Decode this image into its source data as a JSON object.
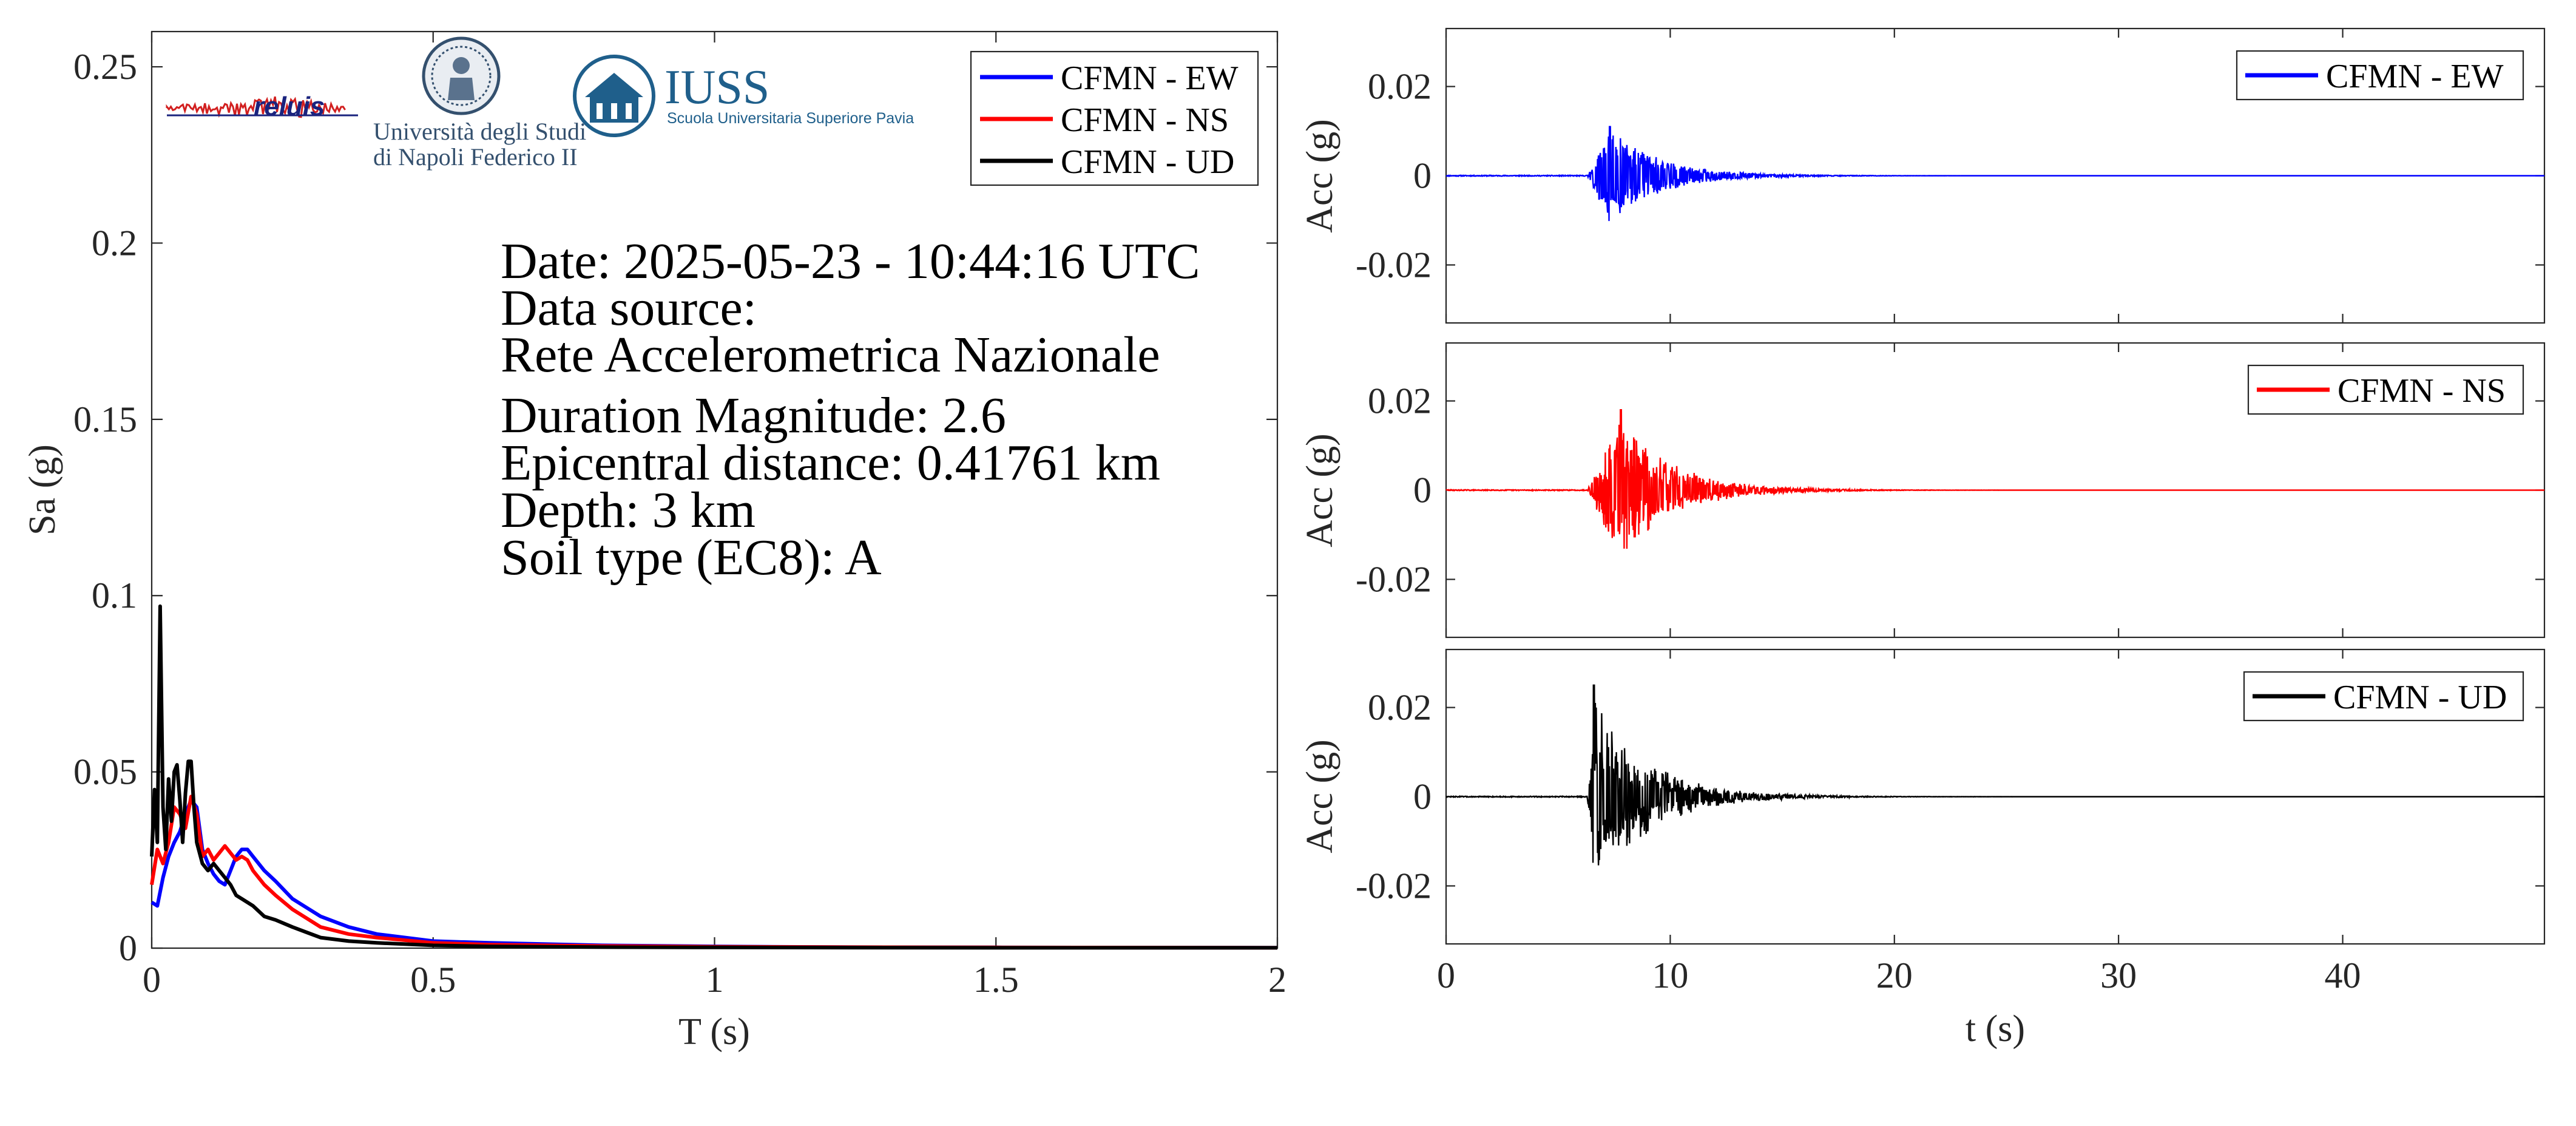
{
  "logos": {
    "reluis": "reluis",
    "unina_line1": "Università degli Studi",
    "unina_line2": "di Napoli Federico II",
    "iuss_title": "IUSS",
    "iuss_subtitle": "Scuola Universitaria Superiore Pavia"
  },
  "info": {
    "date": "Date: 2025-05-23 - 10:44:16 UTC",
    "source_label": "Data source:",
    "source_value": "Rete Accelerometrica Nazionale",
    "magnitude": "Duration Magnitude: 2.6",
    "distance": "Epicentral distance: 0.41761 km",
    "depth": "Depth: 3 km",
    "soil": "Soil type (EC8): A"
  },
  "colors": {
    "ew": "#0000ff",
    "ns": "#ff0000",
    "ud": "#000000",
    "axes": "#262626"
  },
  "chart_data": [
    {
      "type": "line",
      "xlabel": "T (s)",
      "ylabel": "Sa (g)",
      "xlim": [
        0,
        2
      ],
      "ylim": [
        0,
        0.26
      ],
      "xticks": [
        0,
        0.5,
        1,
        1.5,
        2
      ],
      "xtick_labels": [
        "0",
        "0.5",
        "1",
        "1.5",
        "2"
      ],
      "yticks": [
        0,
        0.05,
        0.1,
        0.15,
        0.2,
        0.25
      ],
      "ytick_labels": [
        "0",
        "0.05",
        "0.1",
        "0.15",
        "0.2",
        "0.25"
      ],
      "legend_position": "top-right",
      "series": [
        {
          "name": "CFMN - EW",
          "color": "#0000ff",
          "x": [
            0,
            0.01,
            0.02,
            0.03,
            0.04,
            0.05,
            0.06,
            0.07,
            0.08,
            0.09,
            0.1,
            0.11,
            0.12,
            0.13,
            0.14,
            0.15,
            0.16,
            0.17,
            0.18,
            0.2,
            0.22,
            0.25,
            0.3,
            0.35,
            0.4,
            0.5,
            0.6,
            0.8,
            1.0,
            1.2,
            1.5,
            2.0
          ],
          "y": [
            0.013,
            0.012,
            0.02,
            0.026,
            0.03,
            0.033,
            0.038,
            0.042,
            0.04,
            0.028,
            0.024,
            0.021,
            0.019,
            0.018,
            0.022,
            0.026,
            0.028,
            0.028,
            0.026,
            0.022,
            0.019,
            0.014,
            0.009,
            0.006,
            0.004,
            0.002,
            0.0015,
            0.0008,
            0.0005,
            0.0003,
            0.0002,
            0.0001
          ]
        },
        {
          "name": "CFMN - NS",
          "color": "#ff0000",
          "x": [
            0,
            0.01,
            0.02,
            0.03,
            0.04,
            0.05,
            0.06,
            0.07,
            0.08,
            0.09,
            0.1,
            0.11,
            0.12,
            0.13,
            0.14,
            0.15,
            0.16,
            0.17,
            0.18,
            0.2,
            0.22,
            0.25,
            0.3,
            0.35,
            0.4,
            0.5,
            0.6,
            0.8,
            1.0,
            1.2,
            1.5,
            2.0
          ],
          "y": [
            0.018,
            0.028,
            0.024,
            0.03,
            0.04,
            0.038,
            0.034,
            0.043,
            0.038,
            0.026,
            0.028,
            0.025,
            0.027,
            0.029,
            0.027,
            0.025,
            0.026,
            0.025,
            0.022,
            0.018,
            0.015,
            0.011,
            0.006,
            0.004,
            0.003,
            0.0015,
            0.001,
            0.0006,
            0.0004,
            0.0003,
            0.0002,
            0.0001
          ]
        },
        {
          "name": "CFMN - UD",
          "color": "#000000",
          "x": [
            0,
            0.005,
            0.01,
            0.015,
            0.02,
            0.025,
            0.03,
            0.035,
            0.04,
            0.045,
            0.05,
            0.055,
            0.06,
            0.065,
            0.07,
            0.075,
            0.08,
            0.09,
            0.1,
            0.11,
            0.12,
            0.13,
            0.14,
            0.15,
            0.16,
            0.18,
            0.2,
            0.22,
            0.25,
            0.3,
            0.35,
            0.4,
            0.5,
            0.6,
            0.8,
            1.0,
            1.5,
            2.0
          ],
          "y": [
            0.026,
            0.045,
            0.03,
            0.097,
            0.04,
            0.028,
            0.048,
            0.036,
            0.05,
            0.052,
            0.042,
            0.03,
            0.044,
            0.053,
            0.053,
            0.04,
            0.03,
            0.024,
            0.022,
            0.024,
            0.022,
            0.02,
            0.018,
            0.015,
            0.014,
            0.012,
            0.009,
            0.008,
            0.006,
            0.003,
            0.002,
            0.0015,
            0.0008,
            0.0005,
            0.0003,
            0.0002,
            0.0001,
            0.0001
          ]
        }
      ]
    },
    {
      "type": "line",
      "xlabel": "",
      "ylabel": "Acc (g)",
      "xlim": [
        0,
        49
      ],
      "ylim": [
        -0.033,
        0.033
      ],
      "xticks": [
        0,
        10,
        20,
        30,
        40
      ],
      "xtick_labels": [
        "0",
        "10",
        "20",
        "30",
        "40"
      ],
      "yticks": [
        -0.02,
        0,
        0.02
      ],
      "ytick_labels": [
        "-0.02",
        "0",
        "0.02"
      ],
      "legend_position": "top-right",
      "series": [
        {
          "name": "CFMN - EW",
          "color": "#0000ff",
          "signal": {
            "onset": 6.3,
            "peak_time": 7.3,
            "peak_amplitude": 0.011,
            "min_amplitude": -0.012,
            "decay_end": 16
          }
        }
      ]
    },
    {
      "type": "line",
      "xlabel": "",
      "ylabel": "Acc (g)",
      "xlim": [
        0,
        49
      ],
      "ylim": [
        -0.033,
        0.033
      ],
      "xticks": [
        0,
        10,
        20,
        30,
        40
      ],
      "xtick_labels": [
        "0",
        "10",
        "20",
        "30",
        "40"
      ],
      "yticks": [
        -0.02,
        0,
        0.02
      ],
      "ytick_labels": [
        "-0.02",
        "0",
        "0.02"
      ],
      "legend_position": "top-right",
      "series": [
        {
          "name": "CFMN - NS",
          "color": "#ff0000",
          "signal": {
            "onset": 6.3,
            "peak_time": 7.8,
            "peak_amplitude": 0.018,
            "min_amplitude": -0.014,
            "decay_end": 17
          }
        }
      ]
    },
    {
      "type": "line",
      "xlabel": "t (s)",
      "ylabel": "Acc (g)",
      "xlim": [
        0,
        49
      ],
      "ylim": [
        -0.033,
        0.033
      ],
      "xticks": [
        0,
        10,
        20,
        30,
        40
      ],
      "xtick_labels": [
        "0",
        "10",
        "20",
        "30",
        "40"
      ],
      "yticks": [
        -0.02,
        0,
        0.02
      ],
      "ytick_labels": [
        "-0.02",
        "0",
        "0.02"
      ],
      "legend_position": "top-right",
      "series": [
        {
          "name": "CFMN - UD",
          "color": "#000000",
          "signal": {
            "onset": 6.3,
            "peak_time": 6.6,
            "peak_amplitude": 0.025,
            "min_amplitude": -0.017,
            "decay_end": 16
          }
        }
      ]
    }
  ]
}
